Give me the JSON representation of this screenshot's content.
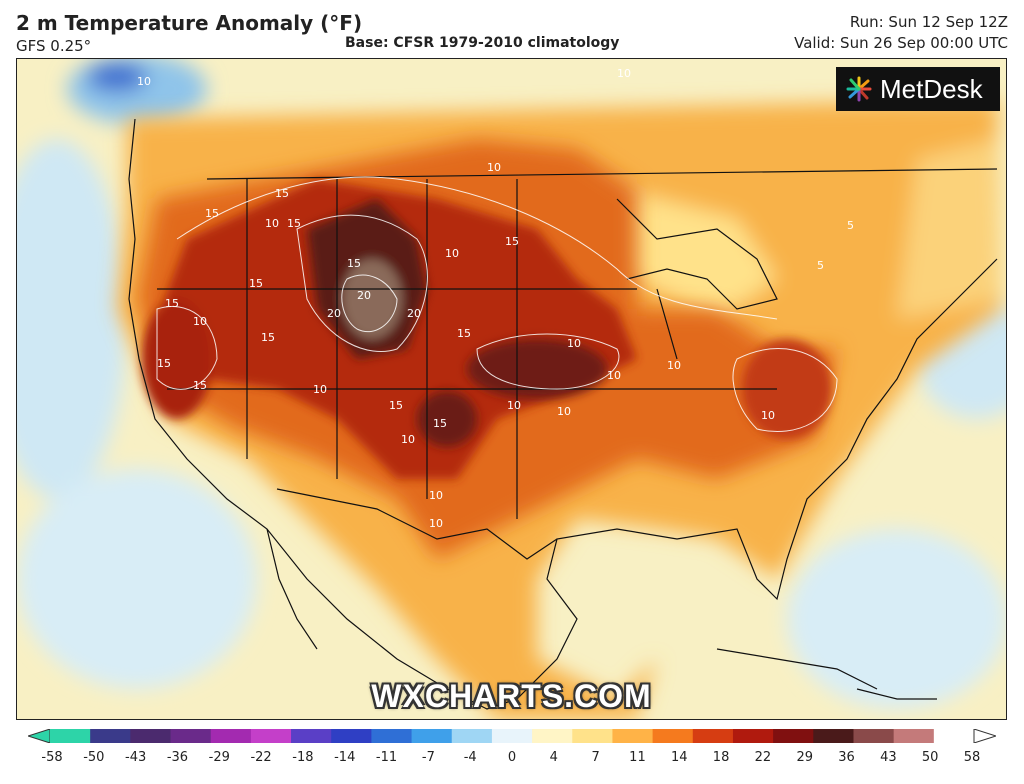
{
  "header": {
    "title": "2 m Temperature Anomaly (°F)",
    "model": "GFS 0.25°",
    "base": "Base: CFSR 1979-2010 climatology",
    "run": "Run: Sun 12 Sep 12Z",
    "valid": "Valid: Sun 26 Sep 00:00 UTC"
  },
  "logo": {
    "text": "MetDesk",
    "icon": "starburst-logo-icon"
  },
  "watermark": "WXCHARTS.COM",
  "contour_labels": [
    "10",
    "15",
    "20",
    "5"
  ],
  "colorbar": {
    "ticks": [
      "-58",
      "-50",
      "-43",
      "-36",
      "-29",
      "-22",
      "-18",
      "-14",
      "-11",
      "-7",
      "-4",
      "0",
      "4",
      "7",
      "11",
      "14",
      "18",
      "22",
      "29",
      "36",
      "43",
      "50",
      "58"
    ],
    "colors": [
      "#2dd4a8",
      "#3a3a8a",
      "#4b2a6e",
      "#6a2a8a",
      "#a32ab0",
      "#c43fc9",
      "#5a3fc6",
      "#2f3fc4",
      "#2f6fd6",
      "#3fa0ea",
      "#9fd6f4",
      "#e8f4fb",
      "#fff5c6",
      "#ffe28a",
      "#ffb347",
      "#f57a1e",
      "#d63d12",
      "#b01a0e",
      "#801010",
      "#4a1a1a",
      "#8a4a4a",
      "#c47a7a",
      "#ffffff"
    ]
  },
  "colors": {
    "ocean": "#f8f0c4",
    "cool": "#cfe8f4",
    "warm": "#f8b24a",
    "hot": "#e26a1c",
    "very_hot": "#b42a10",
    "extreme": "#5a1a12"
  }
}
